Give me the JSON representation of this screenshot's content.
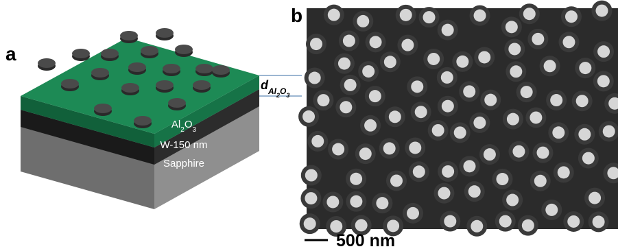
{
  "panel_a": {
    "label": "a",
    "layers": {
      "top": [
        "Al",
        "2",
        "O",
        "3"
      ],
      "middle": "W-150 nm",
      "bottom": "Sapphire"
    },
    "thickness": [
      "d",
      "Al",
      "2",
      "O",
      "3"
    ]
  },
  "panel_b": {
    "label": "b",
    "scale_bar": "500 nm"
  }
}
